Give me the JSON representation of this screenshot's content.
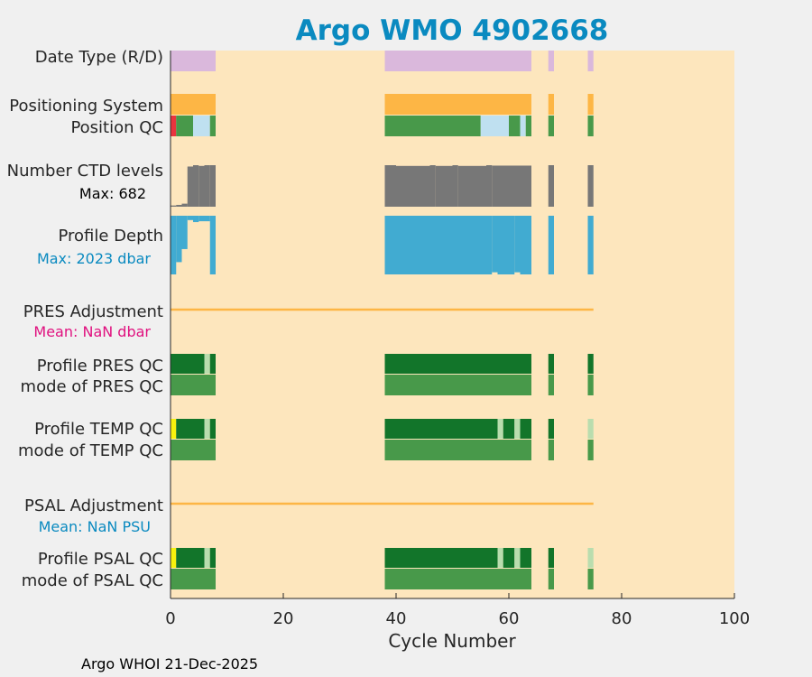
{
  "chart_data": {
    "type": "timeline",
    "title": "Argo WMO 4902668",
    "xlabel": "Cycle Number",
    "xlim": [
      0,
      100
    ],
    "xticks": [
      0,
      20,
      40,
      60,
      80,
      100
    ],
    "xtick_labels": [
      "0",
      "20",
      "40",
      "60",
      "80",
      "100"
    ],
    "footer": "Argo WHOI 21-Dec-2025",
    "row_labels": {
      "date_type": "Date Type (R/D)",
      "positioning_system": "Positioning System",
      "position_qc": "Position QC",
      "n_ctd": "Number CTD levels",
      "profile_depth": "Profile Depth",
      "pres_adj": "PRES Adjustment",
      "profile_pres_qc": "Profile PRES QC",
      "mode_pres_qc": "mode of PRES QC",
      "profile_temp_qc": "Profile TEMP QC",
      "mode_temp_qc": "mode of TEMP QC",
      "psal_adj": "PSAL Adjustment",
      "profile_psal_qc": "Profile PSAL QC",
      "mode_psal_qc": "mode of PSAL QC"
    },
    "annotations": {
      "ctd_max": "Max: 682",
      "depth_max": "Max: 2023 dbar",
      "pres_mean": "Mean:  NaN dbar",
      "psal_mean": "Mean:  NaN PSU"
    },
    "colors": {
      "background": "#fde6bd",
      "figure": "#f0f0f0",
      "title": "#0a8ac0",
      "date_type": "#dab8dc",
      "positioning": "#fdb645",
      "qc_good": "#48994a",
      "qc_dark": "#12752a",
      "qc_light": "#b9ddae",
      "qc_yellow": "#f7f20e",
      "qc_red": "#e8343e",
      "pos_light_blue": "#bfe0f0",
      "ctd": "#777777",
      "depth": "#41abd1",
      "adjustment_line": "#fdb645",
      "depth_label": "#0a8ac0",
      "pres_label": "#e0117f",
      "psal_label": "#0a8ac0"
    },
    "series": {
      "date_type": [
        {
          "start": 0,
          "end": 8,
          "color": "date_type"
        },
        {
          "start": 38,
          "end": 64,
          "color": "date_type"
        },
        {
          "start": 67,
          "end": 68,
          "color": "date_type"
        },
        {
          "start": 74,
          "end": 75,
          "color": "date_type"
        }
      ],
      "positioning_system": [
        {
          "start": 0,
          "end": 8,
          "color": "positioning"
        },
        {
          "start": 38,
          "end": 64,
          "color": "positioning"
        },
        {
          "start": 67,
          "end": 68,
          "color": "positioning"
        },
        {
          "start": 74,
          "end": 75,
          "color": "positioning"
        }
      ],
      "position_qc": [
        {
          "start": 0,
          "end": 1,
          "color": "qc_red"
        },
        {
          "start": 1,
          "end": 4,
          "color": "qc_good"
        },
        {
          "start": 4,
          "end": 7,
          "color": "pos_light_blue"
        },
        {
          "start": 7,
          "end": 8,
          "color": "qc_good"
        },
        {
          "start": 38,
          "end": 55,
          "color": "qc_good"
        },
        {
          "start": 55,
          "end": 60,
          "color": "pos_light_blue"
        },
        {
          "start": 60,
          "end": 62,
          "color": "qc_good"
        },
        {
          "start": 62,
          "end": 63,
          "color": "pos_light_blue"
        },
        {
          "start": 63,
          "end": 64,
          "color": "qc_good"
        },
        {
          "start": 67,
          "end": 68,
          "color": "qc_good"
        },
        {
          "start": 74,
          "end": 75,
          "color": "qc_good"
        }
      ],
      "ctd_levels": {
        "max": 682,
        "bars": [
          {
            "start": 0,
            "end": 1,
            "value": 20
          },
          {
            "start": 1,
            "end": 2,
            "value": 30
          },
          {
            "start": 2,
            "end": 3,
            "value": 50
          },
          {
            "start": 3,
            "end": 4,
            "value": 660
          },
          {
            "start": 4,
            "end": 5,
            "value": 682
          },
          {
            "start": 5,
            "end": 6,
            "value": 670
          },
          {
            "start": 6,
            "end": 7,
            "value": 682
          },
          {
            "start": 7,
            "end": 8,
            "value": 682
          },
          {
            "start": 38,
            "end": 40,
            "value": 682
          },
          {
            "start": 40,
            "end": 46,
            "value": 670
          },
          {
            "start": 46,
            "end": 47,
            "value": 682
          },
          {
            "start": 47,
            "end": 50,
            "value": 670
          },
          {
            "start": 50,
            "end": 51,
            "value": 682
          },
          {
            "start": 51,
            "end": 56,
            "value": 670
          },
          {
            "start": 56,
            "end": 57,
            "value": 682
          },
          {
            "start": 57,
            "end": 64,
            "value": 675
          },
          {
            "start": 67,
            "end": 68,
            "value": 682
          },
          {
            "start": 74,
            "end": 75,
            "value": 682
          }
        ]
      },
      "profile_depth": {
        "max": 2023,
        "bars": [
          {
            "start": 0,
            "end": 1,
            "value": 2023
          },
          {
            "start": 1,
            "end": 2,
            "value": 1600
          },
          {
            "start": 2,
            "end": 3,
            "value": 1150
          },
          {
            "start": 3,
            "end": 4,
            "value": 150
          },
          {
            "start": 4,
            "end": 5,
            "value": 220
          },
          {
            "start": 5,
            "end": 7,
            "value": 190
          },
          {
            "start": 7,
            "end": 8,
            "value": 2023
          },
          {
            "start": 38,
            "end": 57,
            "value": 2023
          },
          {
            "start": 57,
            "end": 58,
            "value": 1950
          },
          {
            "start": 58,
            "end": 61,
            "value": 2023
          },
          {
            "start": 61,
            "end": 62,
            "value": 1950
          },
          {
            "start": 62,
            "end": 64,
            "value": 2023
          },
          {
            "start": 67,
            "end": 68,
            "value": 2023
          },
          {
            "start": 74,
            "end": 75,
            "value": 2023
          }
        ]
      },
      "pres_adjustment": {
        "start": 0,
        "end": 75,
        "value": null
      },
      "psal_adjustment": {
        "start": 0,
        "end": 75,
        "value": null
      },
      "profile_pres_qc": [
        {
          "start": 0,
          "end": 6,
          "color": "qc_dark"
        },
        {
          "start": 6,
          "end": 7,
          "color": "qc_light"
        },
        {
          "start": 7,
          "end": 8,
          "color": "qc_dark"
        },
        {
          "start": 38,
          "end": 64,
          "color": "qc_dark"
        },
        {
          "start": 67,
          "end": 68,
          "color": "qc_dark"
        },
        {
          "start": 74,
          "end": 75,
          "color": "qc_dark"
        }
      ],
      "mode_pres_qc": [
        {
          "start": 0,
          "end": 8,
          "color": "qc_good"
        },
        {
          "start": 38,
          "end": 64,
          "color": "qc_good"
        },
        {
          "start": 67,
          "end": 68,
          "color": "qc_good"
        },
        {
          "start": 74,
          "end": 75,
          "color": "qc_good"
        }
      ],
      "profile_temp_qc": [
        {
          "start": 0,
          "end": 1,
          "color": "qc_yellow"
        },
        {
          "start": 1,
          "end": 6,
          "color": "qc_dark"
        },
        {
          "start": 6,
          "end": 7,
          "color": "qc_light"
        },
        {
          "start": 7,
          "end": 8,
          "color": "qc_dark"
        },
        {
          "start": 38,
          "end": 58,
          "color": "qc_dark"
        },
        {
          "start": 58,
          "end": 59,
          "color": "qc_light"
        },
        {
          "start": 59,
          "end": 61,
          "color": "qc_dark"
        },
        {
          "start": 61,
          "end": 62,
          "color": "qc_light"
        },
        {
          "start": 62,
          "end": 64,
          "color": "qc_dark"
        },
        {
          "start": 67,
          "end": 68,
          "color": "qc_dark"
        },
        {
          "start": 74,
          "end": 75,
          "color": "qc_light"
        }
      ],
      "mode_temp_qc": [
        {
          "start": 0,
          "end": 8,
          "color": "qc_good"
        },
        {
          "start": 38,
          "end": 64,
          "color": "qc_good"
        },
        {
          "start": 67,
          "end": 68,
          "color": "qc_good"
        },
        {
          "start": 74,
          "end": 75,
          "color": "qc_good"
        }
      ],
      "profile_psal_qc": [
        {
          "start": 0,
          "end": 1,
          "color": "qc_yellow"
        },
        {
          "start": 1,
          "end": 6,
          "color": "qc_dark"
        },
        {
          "start": 6,
          "end": 7,
          "color": "qc_light"
        },
        {
          "start": 7,
          "end": 8,
          "color": "qc_dark"
        },
        {
          "start": 38,
          "end": 58,
          "color": "qc_dark"
        },
        {
          "start": 58,
          "end": 59,
          "color": "qc_light"
        },
        {
          "start": 59,
          "end": 61,
          "color": "qc_dark"
        },
        {
          "start": 61,
          "end": 62,
          "color": "qc_light"
        },
        {
          "start": 62,
          "end": 64,
          "color": "qc_dark"
        },
        {
          "start": 67,
          "end": 68,
          "color": "qc_dark"
        },
        {
          "start": 74,
          "end": 75,
          "color": "qc_light"
        }
      ],
      "mode_psal_qc": [
        {
          "start": 0,
          "end": 8,
          "color": "qc_good"
        },
        {
          "start": 38,
          "end": 64,
          "color": "qc_good"
        },
        {
          "start": 67,
          "end": 68,
          "color": "qc_good"
        },
        {
          "start": 74,
          "end": 75,
          "color": "qc_good"
        }
      ]
    }
  }
}
